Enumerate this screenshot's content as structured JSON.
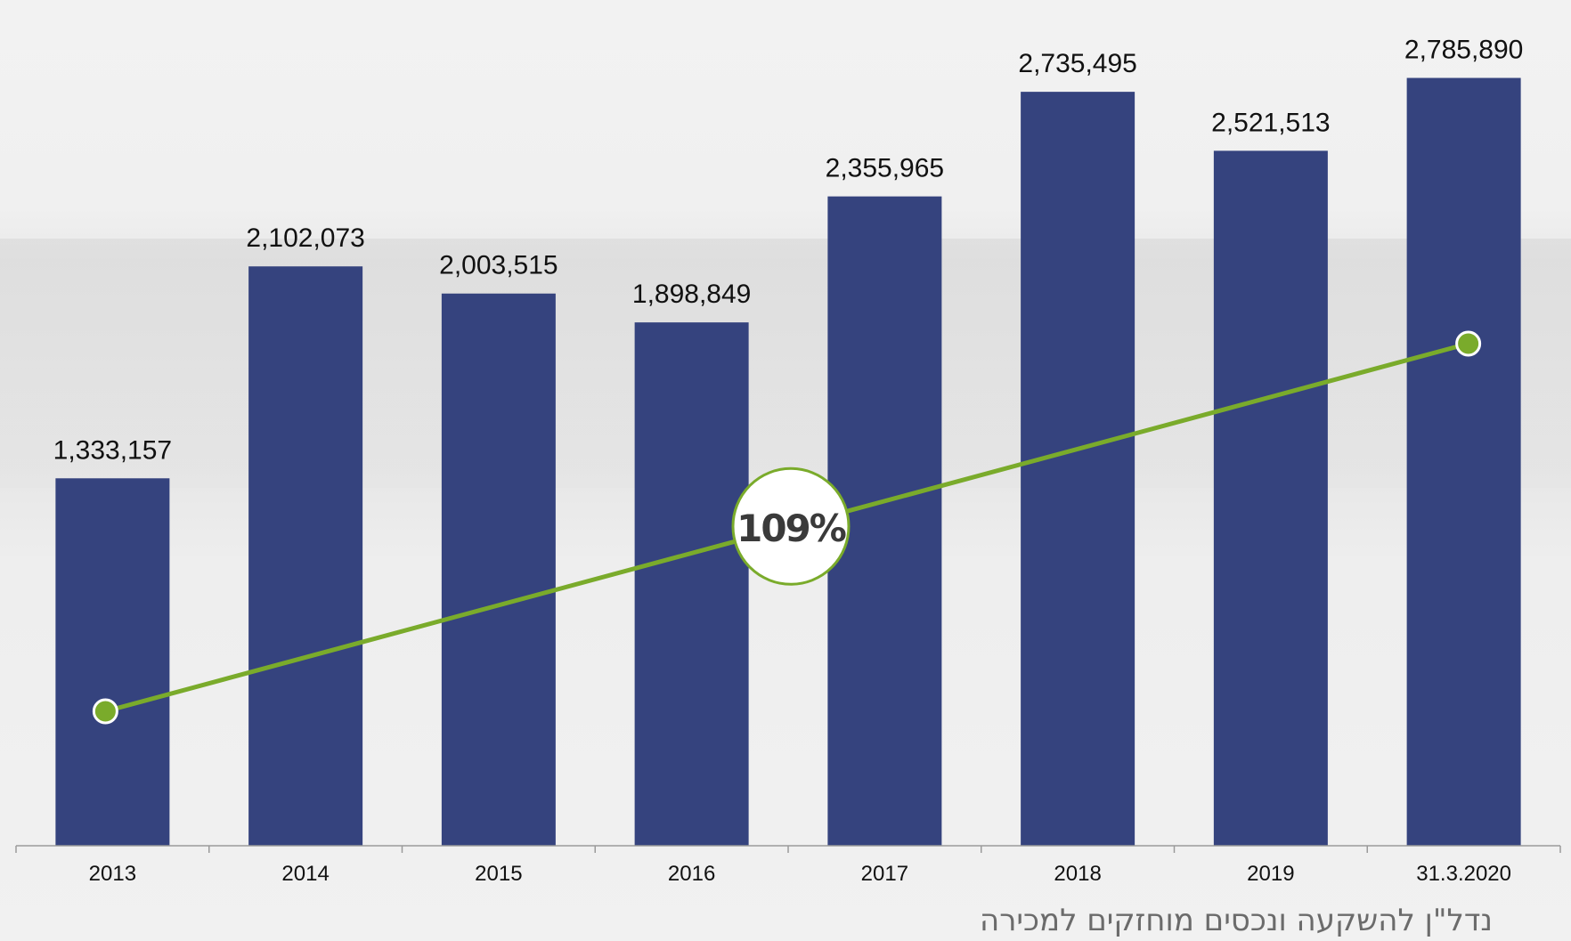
{
  "chart_data": {
    "type": "bar",
    "categories": [
      "2013",
      "2014",
      "2015",
      "2016",
      "2017",
      "2018",
      "2019",
      "31.3.2020"
    ],
    "series": [
      {
        "values": [
          1333157,
          2102073,
          2003515,
          1898849,
          2355965,
          2735495,
          2521513,
          2785890
        ]
      }
    ],
    "data_labels": [
      "1,333,157",
      "2,102,073",
      "2,003,515",
      "1,898,849",
      "2,355,965",
      "2,735,495",
      "2,521,513",
      "2,785,890"
    ],
    "title": "נדל\"ן להשקעה ונכסים מוחזקים למכירה",
    "xlabel": "",
    "ylabel": "",
    "ylim": [
      0,
      3000000
    ],
    "grid": false,
    "legend": "none",
    "trend_line": {
      "from_category": "2013",
      "to_category": "31.3.2020",
      "growth_label": "109%"
    },
    "colors": {
      "bar": "#35437e",
      "trend": "#7aab2b",
      "badge_border": "#7aab2b",
      "badge_fill": "#ffffff"
    }
  }
}
